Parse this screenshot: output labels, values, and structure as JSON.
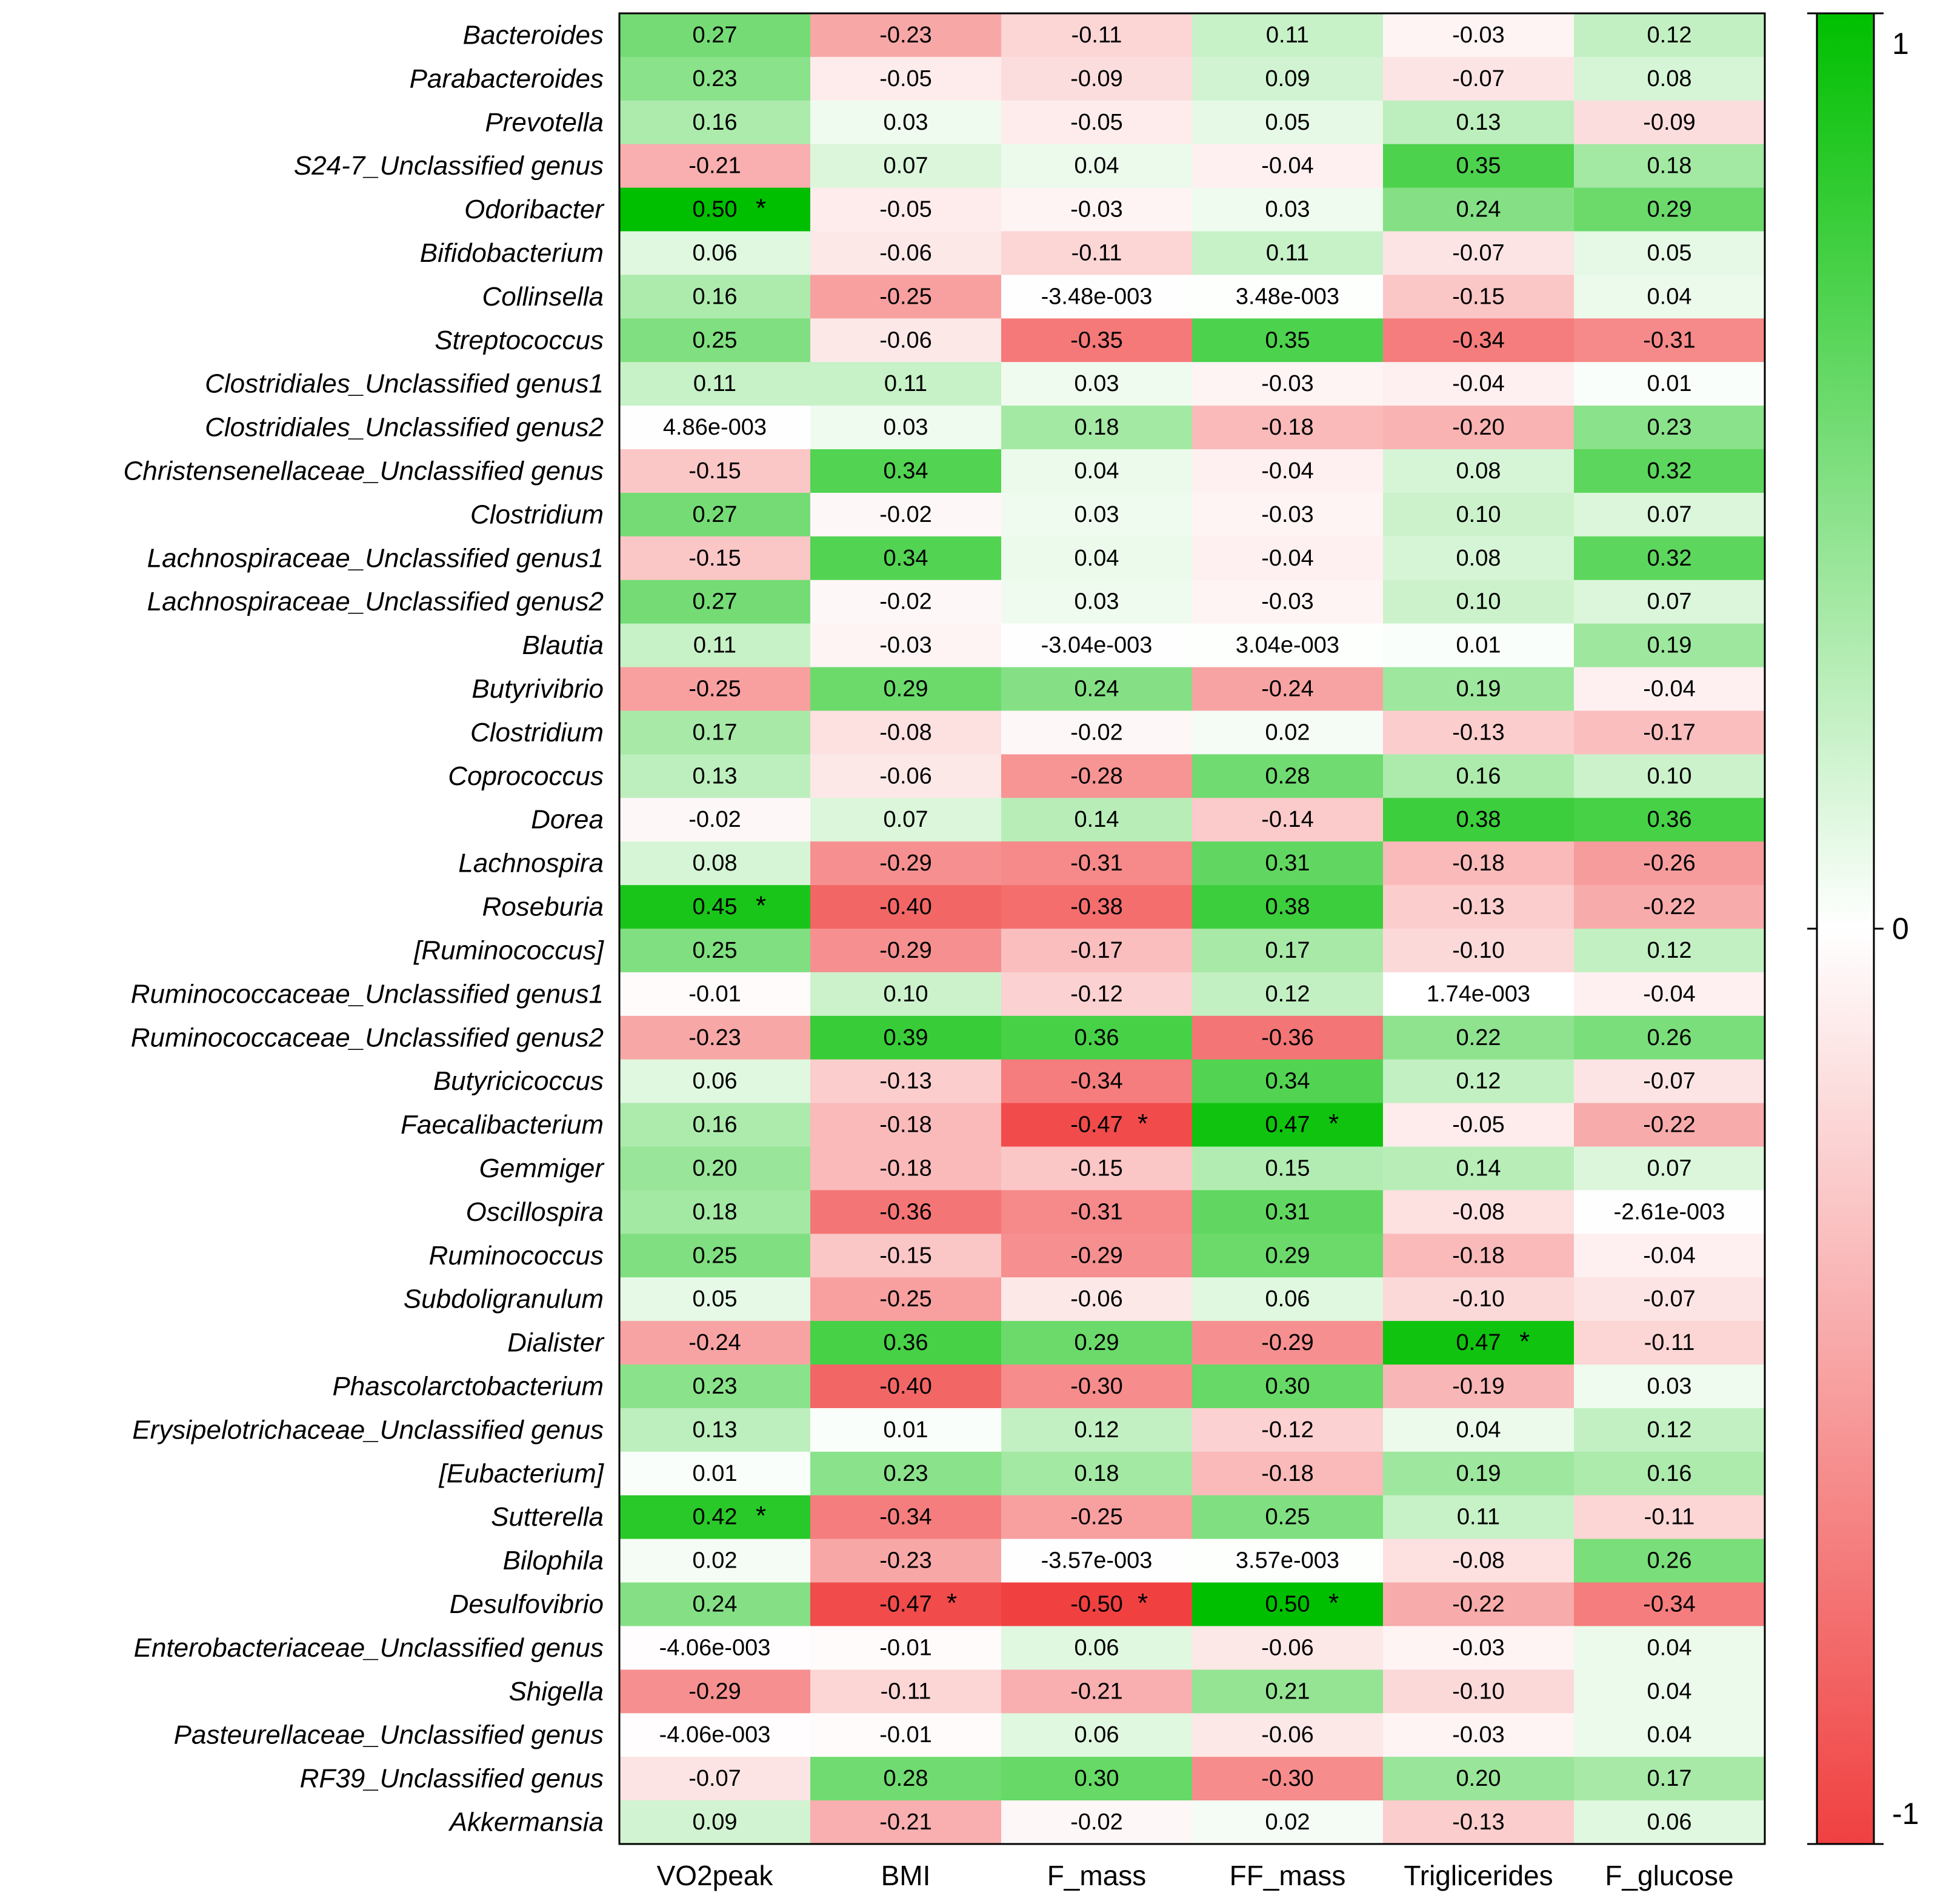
{
  "chart_data": {
    "type": "heatmap",
    "title": "",
    "xlabel": "",
    "ylabel": "",
    "columns": [
      "VO2peak",
      "BMI",
      "F_mass",
      "FF_mass",
      "Triglicerides",
      "F_glucose"
    ],
    "rows": [
      {
        "name": "Bacteroides",
        "values": [
          "0.27",
          "-0.23",
          "-0.11",
          "0.11",
          "-0.03",
          "0.12"
        ],
        "sig": [
          0,
          0,
          0,
          0,
          0,
          0
        ]
      },
      {
        "name": "Parabacteroides",
        "values": [
          "0.23",
          "-0.05",
          "-0.09",
          "0.09",
          "-0.07",
          "0.08"
        ],
        "sig": [
          0,
          0,
          0,
          0,
          0,
          0
        ]
      },
      {
        "name": "Prevotella",
        "values": [
          "0.16",
          "0.03",
          "-0.05",
          "0.05",
          "0.13",
          "-0.09"
        ],
        "sig": [
          0,
          0,
          0,
          0,
          0,
          0
        ]
      },
      {
        "name": "S24-7_Unclassified genus",
        "values": [
          "-0.21",
          "0.07",
          "0.04",
          "-0.04",
          "0.35",
          "0.18"
        ],
        "sig": [
          0,
          0,
          0,
          0,
          0,
          0
        ]
      },
      {
        "name": "Odoribacter",
        "values": [
          "0.50",
          "-0.05",
          "-0.03",
          "0.03",
          "0.24",
          "0.29"
        ],
        "sig": [
          1,
          0,
          0,
          0,
          0,
          0
        ]
      },
      {
        "name": "Bifidobacterium",
        "values": [
          "0.06",
          "-0.06",
          "-0.11",
          "0.11",
          "-0.07",
          "0.05"
        ],
        "sig": [
          0,
          0,
          0,
          0,
          0,
          0
        ]
      },
      {
        "name": "Collinsella",
        "values": [
          "0.16",
          "-0.25",
          "-3.48e-003",
          "3.48e-003",
          "-0.15",
          "0.04"
        ],
        "sig": [
          0,
          0,
          0,
          0,
          0,
          0
        ]
      },
      {
        "name": "Streptococcus",
        "values": [
          "0.25",
          "-0.06",
          "-0.35",
          "0.35",
          "-0.34",
          "-0.31"
        ],
        "sig": [
          0,
          0,
          0,
          0,
          0,
          0
        ]
      },
      {
        "name": "Clostridiales_Unclassified genus1",
        "values": [
          "0.11",
          "0.11",
          "0.03",
          "-0.03",
          "-0.04",
          "0.01"
        ],
        "sig": [
          0,
          0,
          0,
          0,
          0,
          0
        ]
      },
      {
        "name": "Clostridiales_Unclassified genus2",
        "values": [
          "4.86e-003",
          "0.03",
          "0.18",
          "-0.18",
          "-0.20",
          "0.23"
        ],
        "sig": [
          0,
          0,
          0,
          0,
          0,
          0
        ]
      },
      {
        "name": "Christensenellaceae_Unclassified genus",
        "values": [
          "-0.15",
          "0.34",
          "0.04",
          "-0.04",
          "0.08",
          "0.32"
        ],
        "sig": [
          0,
          0,
          0,
          0,
          0,
          0
        ]
      },
      {
        "name": "Clostridium",
        "values": [
          "0.27",
          "-0.02",
          "0.03",
          "-0.03",
          "0.10",
          "0.07"
        ],
        "sig": [
          0,
          0,
          0,
          0,
          0,
          0
        ]
      },
      {
        "name": "Lachnospiraceae_Unclassified genus1",
        "values": [
          "-0.15",
          "0.34",
          "0.04",
          "-0.04",
          "0.08",
          "0.32"
        ],
        "sig": [
          0,
          0,
          0,
          0,
          0,
          0
        ]
      },
      {
        "name": "Lachnospiraceae_Unclassified genus2",
        "values": [
          "0.27",
          "-0.02",
          "0.03",
          "-0.03",
          "0.10",
          "0.07"
        ],
        "sig": [
          0,
          0,
          0,
          0,
          0,
          0
        ]
      },
      {
        "name": "Blautia",
        "values": [
          "0.11",
          "-0.03",
          "-3.04e-003",
          "3.04e-003",
          "0.01",
          "0.19"
        ],
        "sig": [
          0,
          0,
          0,
          0,
          0,
          0
        ]
      },
      {
        "name": "Butyrivibrio",
        "values": [
          "-0.25",
          "0.29",
          "0.24",
          "-0.24",
          "0.19",
          "-0.04"
        ],
        "sig": [
          0,
          0,
          0,
          0,
          0,
          0
        ]
      },
      {
        "name": "Clostridium",
        "values": [
          "0.17",
          "-0.08",
          "-0.02",
          "0.02",
          "-0.13",
          "-0.17"
        ],
        "sig": [
          0,
          0,
          0,
          0,
          0,
          0
        ]
      },
      {
        "name": "Coprococcus",
        "values": [
          "0.13",
          "-0.06",
          "-0.28",
          "0.28",
          "0.16",
          "0.10"
        ],
        "sig": [
          0,
          0,
          0,
          0,
          0,
          0
        ]
      },
      {
        "name": "Dorea",
        "values": [
          "-0.02",
          "0.07",
          "0.14",
          "-0.14",
          "0.38",
          "0.36"
        ],
        "sig": [
          0,
          0,
          0,
          0,
          0,
          0
        ]
      },
      {
        "name": "Lachnospira",
        "values": [
          "0.08",
          "-0.29",
          "-0.31",
          "0.31",
          "-0.18",
          "-0.26"
        ],
        "sig": [
          0,
          0,
          0,
          0,
          0,
          0
        ]
      },
      {
        "name": "Roseburia",
        "values": [
          "0.45",
          "-0.40",
          "-0.38",
          "0.38",
          "-0.13",
          "-0.22"
        ],
        "sig": [
          1,
          0,
          0,
          0,
          0,
          0
        ]
      },
      {
        "name": "[Ruminococcus]",
        "values": [
          "0.25",
          "-0.29",
          "-0.17",
          "0.17",
          "-0.10",
          "0.12"
        ],
        "sig": [
          0,
          0,
          0,
          0,
          0,
          0
        ]
      },
      {
        "name": "Ruminococcaceae_Unclassified genus1",
        "values": [
          "-0.01",
          "0.10",
          "-0.12",
          "0.12",
          "1.74e-003",
          "-0.04"
        ],
        "sig": [
          0,
          0,
          0,
          0,
          0,
          0
        ]
      },
      {
        "name": "Ruminococcaceae_Unclassified genus2",
        "values": [
          "-0.23",
          "0.39",
          "0.36",
          "-0.36",
          "0.22",
          "0.26"
        ],
        "sig": [
          0,
          0,
          0,
          0,
          0,
          0
        ]
      },
      {
        "name": "Butyricicoccus",
        "values": [
          "0.06",
          "-0.13",
          "-0.34",
          "0.34",
          "0.12",
          "-0.07"
        ],
        "sig": [
          0,
          0,
          0,
          0,
          0,
          0
        ]
      },
      {
        "name": "Faecalibacterium",
        "values": [
          "0.16",
          "-0.18",
          "-0.47",
          "0.47",
          "-0.05",
          "-0.22"
        ],
        "sig": [
          0,
          0,
          1,
          1,
          0,
          0
        ]
      },
      {
        "name": "Gemmiger",
        "values": [
          "0.20",
          "-0.18",
          "-0.15",
          "0.15",
          "0.14",
          "0.07"
        ],
        "sig": [
          0,
          0,
          0,
          0,
          0,
          0
        ]
      },
      {
        "name": "Oscillospira",
        "values": [
          "0.18",
          "-0.36",
          "-0.31",
          "0.31",
          "-0.08",
          "-2.61e-003"
        ],
        "sig": [
          0,
          0,
          0,
          0,
          0,
          0
        ]
      },
      {
        "name": "Ruminococcus",
        "values": [
          "0.25",
          "-0.15",
          "-0.29",
          "0.29",
          "-0.18",
          "-0.04"
        ],
        "sig": [
          0,
          0,
          0,
          0,
          0,
          0
        ]
      },
      {
        "name": "Subdoligranulum",
        "values": [
          "0.05",
          "-0.25",
          "-0.06",
          "0.06",
          "-0.10",
          "-0.07"
        ],
        "sig": [
          0,
          0,
          0,
          0,
          0,
          0
        ]
      },
      {
        "name": "Dialister",
        "values": [
          "-0.24",
          "0.36",
          "0.29",
          "-0.29",
          "0.47",
          "-0.11"
        ],
        "sig": [
          0,
          0,
          0,
          0,
          1,
          0
        ]
      },
      {
        "name": "Phascolarctobacterium",
        "values": [
          "0.23",
          "-0.40",
          "-0.30",
          "0.30",
          "-0.19",
          "0.03"
        ],
        "sig": [
          0,
          0,
          0,
          0,
          0,
          0
        ]
      },
      {
        "name": "Erysipelotrichaceae_Unclassified genus",
        "values": [
          "0.13",
          "0.01",
          "0.12",
          "-0.12",
          "0.04",
          "0.12"
        ],
        "sig": [
          0,
          0,
          0,
          0,
          0,
          0
        ]
      },
      {
        "name": "[Eubacterium]",
        "values": [
          "0.01",
          "0.23",
          "0.18",
          "-0.18",
          "0.19",
          "0.16"
        ],
        "sig": [
          0,
          0,
          0,
          0,
          0,
          0
        ]
      },
      {
        "name": "Sutterella",
        "values": [
          "0.42",
          "-0.34",
          "-0.25",
          "0.25",
          "0.11",
          "-0.11"
        ],
        "sig": [
          1,
          0,
          0,
          0,
          0,
          0
        ]
      },
      {
        "name": "Bilophila",
        "values": [
          "0.02",
          "-0.23",
          "-3.57e-003",
          "3.57e-003",
          "-0.08",
          "0.26"
        ],
        "sig": [
          0,
          0,
          0,
          0,
          0,
          0
        ]
      },
      {
        "name": "Desulfovibrio",
        "values": [
          "0.24",
          "-0.47",
          "-0.50",
          "0.50",
          "-0.22",
          "-0.34"
        ],
        "sig": [
          0,
          1,
          1,
          1,
          0,
          0
        ]
      },
      {
        "name": "Enterobacteriaceae_Unclassified genus",
        "values": [
          "-4.06e-003",
          "-0.01",
          "0.06",
          "-0.06",
          "-0.03",
          "0.04"
        ],
        "sig": [
          0,
          0,
          0,
          0,
          0,
          0
        ]
      },
      {
        "name": "Shigella",
        "values": [
          "-0.29",
          "-0.11",
          "-0.21",
          "0.21",
          "-0.10",
          "0.04"
        ],
        "sig": [
          0,
          0,
          0,
          0,
          0,
          0
        ]
      },
      {
        "name": "Pasteurellaceae_Unclassified genus",
        "values": [
          "-4.06e-003",
          "-0.01",
          "0.06",
          "-0.06",
          "-0.03",
          "0.04"
        ],
        "sig": [
          0,
          0,
          0,
          0,
          0,
          0
        ]
      },
      {
        "name": "RF39_Unclassified genus",
        "values": [
          "-0.07",
          "0.28",
          "0.30",
          "-0.30",
          "0.20",
          "0.17"
        ],
        "sig": [
          0,
          0,
          0,
          0,
          0,
          0
        ]
      },
      {
        "name": "Akkermansia",
        "values": [
          "0.09",
          "-0.21",
          "-0.02",
          "0.02",
          "-0.13",
          "0.06"
        ],
        "sig": [
          0,
          0,
          0,
          0,
          0,
          0
        ]
      }
    ],
    "significance_marker": "*",
    "color_scale": {
      "range": [
        -1,
        1
      ],
      "ticks": [
        "1",
        "0",
        "-1"
      ],
      "tick_values": [
        1,
        0,
        -1
      ],
      "positive_color": "#00bf00",
      "zero_color": "#ffffff",
      "negative_color": "#f04040",
      "saturation_at": 0.5
    },
    "legend": "right",
    "grid": false
  }
}
